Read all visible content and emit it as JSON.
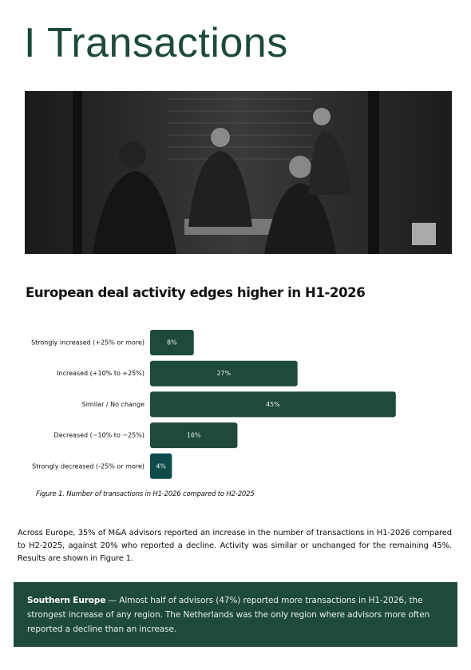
{
  "header": {
    "title": "I Transactions"
  },
  "chart": {
    "type": "bar",
    "orientation": "horizontal",
    "title": "European deal activity edges higher in H1-2026",
    "categories": [
      "Strongly increased (+25% or more)",
      "Increased (+10% to +25%)",
      "Similar / No change",
      "Decreased (−10% to −25%)",
      "Strongly decreased (-25% or more)"
    ],
    "values": [
      8,
      27,
      45,
      16,
      4
    ],
    "value_labels": [
      "8%",
      "27%",
      "45%",
      "16%",
      "4%"
    ],
    "colors": [
      "#1d4a3b",
      "#1d4a3b",
      "#1d4a3b",
      "#1d4a3b",
      "#0f4a4c"
    ],
    "caption": "Figure 1. Number of transactions in H1-2026 compared to H2-2025"
  },
  "body": {
    "paragraph": "Across Europe, 35% of M&A advisors reported an increase in the number of transactions in H1-2026 compared to H2-2025, against 20% who reported a decline. Activity was similar or unchanged for the remaining 45%. Results are shown in Figure 1."
  },
  "callout": {
    "lead": "Southern Europe",
    "text": " — Almost half of advisors (47%) reported more transactions in H1-2026, the strongest increase of any region. The Netherlands was the only region where advisors more often reported a decline than an increase."
  }
}
